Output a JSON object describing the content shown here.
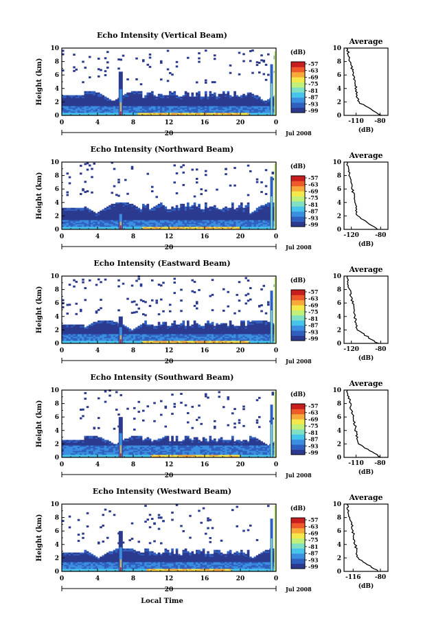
{
  "chart_data": [
    {
      "type": "heatmap",
      "title": "Echo Intensity (Vertical Beam)",
      "ylabel": "Height (km)",
      "ylim": [
        0,
        10
      ],
      "yticks": [
        "0",
        "2",
        "4",
        "6",
        "8",
        "10"
      ],
      "xlim": [
        0,
        24
      ],
      "xticks": [
        "0",
        "4",
        "8",
        "12",
        "16",
        "20",
        "0"
      ],
      "date_marker": "20",
      "date_label": "Jul 2008",
      "colorbar_label": "(dB)",
      "colorbar_ticks": [
        "-57",
        "-63",
        "-69",
        "-75",
        "-81",
        "-87",
        "-93",
        "-99"
      ],
      "average": {
        "title": "Average",
        "xlabel": "(dB)",
        "xticks": [
          "-110",
          "-80"
        ],
        "xlim": [
          -125,
          -70
        ]
      },
      "features": {
        "top_km": 3.6,
        "dense_km": 1.4,
        "sparse_km": 9.6,
        "spike_h": 6.5,
        "spike2_h": 9.5,
        "warm_start": 8.5,
        "warm_end": 21
      }
    },
    {
      "type": "heatmap",
      "title": "Echo Intensity (Northward Beam)",
      "ylabel": "Height (km)",
      "ylim": [
        0,
        10
      ],
      "yticks": [
        "0",
        "2",
        "4",
        "6",
        "8",
        "10"
      ],
      "xlim": [
        0,
        24
      ],
      "xticks": [
        "0",
        "4",
        "8",
        "12",
        "16",
        "20",
        "0"
      ],
      "date_marker": "20",
      "date_label": "Jul 2008",
      "colorbar_label": "(dB)",
      "colorbar_ticks": [
        "-57",
        "-63",
        "-69",
        "-75",
        "-81",
        "-87",
        "-93",
        "-99"
      ],
      "average": {
        "title": "Average",
        "xlabel": "(dB)",
        "xticks": [
          "-120",
          "-80"
        ],
        "xlim": [
          -130,
          -70
        ]
      },
      "features": {
        "top_km": 4.0,
        "dense_km": 1.3,
        "sparse_km": 9.8,
        "spike_h": 3.8,
        "spike2_h": 9.8,
        "warm_start": 9.0,
        "warm_end": 20
      }
    },
    {
      "type": "heatmap",
      "title": "Echo Intensity (Eastward Beam)",
      "ylabel": "Height (km)",
      "ylim": [
        0,
        10
      ],
      "yticks": [
        "0",
        "2",
        "4",
        "6",
        "8",
        "10"
      ],
      "xlim": [
        0,
        24
      ],
      "xticks": [
        "0",
        "4",
        "8",
        "12",
        "16",
        "20",
        "0"
      ],
      "date_marker": "20",
      "date_label": "Jul 2008",
      "colorbar_label": "(dB)",
      "colorbar_ticks": [
        "-57",
        "-63",
        "-69",
        "-75",
        "-81",
        "-87",
        "-93",
        "-99"
      ],
      "average": {
        "title": "Average",
        "xlabel": "(dB)",
        "xticks": [
          "-120",
          "-80"
        ],
        "xlim": [
          -130,
          -70
        ]
      },
      "features": {
        "top_km": 3.4,
        "dense_km": 1.4,
        "sparse_km": 9.8,
        "spike_h": 4.0,
        "spike2_h": 9.8,
        "warm_start": 9.0,
        "warm_end": 21
      }
    },
    {
      "type": "heatmap",
      "title": "Echo Intensity (Southward Beam)",
      "ylabel": "Height (km)",
      "ylim": [
        0,
        10
      ],
      "yticks": [
        "0",
        "2",
        "4",
        "6",
        "8",
        "10"
      ],
      "xlim": [
        0,
        24
      ],
      "xticks": [
        "0",
        "4",
        "8",
        "12",
        "16",
        "20",
        "0"
      ],
      "date_marker": "20",
      "date_label": "Jul 2008",
      "colorbar_label": "(dB)",
      "colorbar_ticks": [
        "-57",
        "-63",
        "-69",
        "-75",
        "-81",
        "-87",
        "-93",
        "-99"
      ],
      "average": {
        "title": "Average",
        "xlabel": "(dB)",
        "xticks": [
          "-110",
          "-80"
        ],
        "xlim": [
          -125,
          -70
        ]
      },
      "features": {
        "top_km": 3.2,
        "dense_km": 1.6,
        "sparse_km": 9.8,
        "spike_h": 6.0,
        "spike2_h": 9.8,
        "warm_start": 10.0,
        "warm_end": 20
      }
    },
    {
      "type": "heatmap",
      "title": "Echo Intensity (Westward Beam)",
      "ylabel": "Height (km)",
      "ylim": [
        0,
        10
      ],
      "yticks": [
        "0",
        "2",
        "4",
        "6",
        "8",
        "10"
      ],
      "xlim": [
        0,
        24
      ],
      "xticks": [
        "0",
        "4",
        "8",
        "12",
        "16",
        "20",
        "0"
      ],
      "date_marker": "20",
      "date_label": "Jul 2008",
      "colorbar_label": "(dB)",
      "colorbar_ticks": [
        "-57",
        "-63",
        "-69",
        "-75",
        "-81",
        "-87",
        "-93",
        "-99"
      ],
      "average": {
        "title": "Average",
        "xlabel": "(dB)",
        "xticks": [
          "-116",
          "-80"
        ],
        "xlim": [
          -128,
          -70
        ]
      },
      "features": {
        "top_km": 3.4,
        "dense_km": 1.3,
        "sparse_km": 9.8,
        "spike_h": 6.0,
        "spike2_h": 9.8,
        "warm_start": 9.5,
        "warm_end": 19
      }
    }
  ],
  "xlabel": "Local Time",
  "colormap": [
    "#2b3a8f",
    "#2f5fbf",
    "#3b8fe0",
    "#46c4ec",
    "#7fe0c4",
    "#c0f07a",
    "#f4e94a",
    "#f7a93a",
    "#ee5a2a",
    "#c81e1e"
  ]
}
